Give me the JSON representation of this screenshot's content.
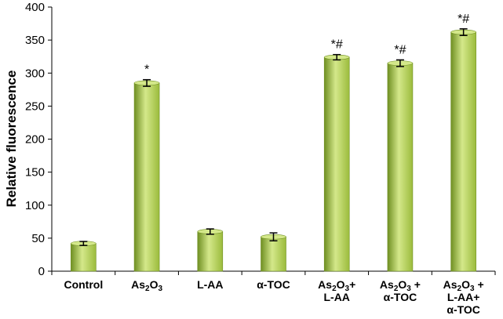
{
  "chart_data": {
    "type": "bar",
    "title": "",
    "xlabel": "",
    "ylabel": "Relative fluorescence",
    "ylim": [
      0,
      400
    ],
    "yticks": [
      0,
      50,
      100,
      150,
      200,
      250,
      300,
      350,
      400
    ],
    "grid": false,
    "legend": "none",
    "bar_color": "#9bbb3c",
    "bar_color_light": "#d4e88a",
    "bar_color_dark": "#6f8f22",
    "categories": [
      {
        "lines": [
          [
            {
              "t": "Control"
            }
          ]
        ]
      },
      {
        "lines": [
          [
            {
              "t": "As"
            },
            {
              "t": "2",
              "sub": true
            },
            {
              "t": "O"
            },
            {
              "t": "3",
              "sub": true
            }
          ]
        ]
      },
      {
        "lines": [
          [
            {
              "t": "L-AA"
            }
          ]
        ]
      },
      {
        "lines": [
          [
            {
              "t": "α-TOC"
            }
          ]
        ]
      },
      {
        "lines": [
          [
            {
              "t": "As"
            },
            {
              "t": "2",
              "sub": true
            },
            {
              "t": "O"
            },
            {
              "t": "3",
              "sub": true
            },
            {
              "t": "+"
            }
          ],
          [
            {
              "t": "L-AA"
            }
          ]
        ]
      },
      {
        "lines": [
          [
            {
              "t": "As"
            },
            {
              "t": "2",
              "sub": true
            },
            {
              "t": "O"
            },
            {
              "t": "3",
              "sub": true
            },
            {
              "t": " +"
            }
          ],
          [
            {
              "t": "α-TOC"
            }
          ]
        ]
      },
      {
        "lines": [
          [
            {
              "t": "As"
            },
            {
              "t": "2",
              "sub": true
            },
            {
              "t": "O"
            },
            {
              "t": "3",
              "sub": true
            },
            {
              "t": " +"
            }
          ],
          [
            {
              "t": "L-AA+"
            }
          ],
          [
            {
              "t": "α-TOC"
            }
          ]
        ]
      }
    ],
    "values": [
      42,
      285,
      60,
      52,
      324,
      315,
      362
    ],
    "errors": [
      3,
      5,
      4,
      6,
      4,
      5,
      5
    ],
    "annotations": [
      "",
      "*",
      "",
      "",
      "*#",
      "*#",
      "*#"
    ]
  }
}
